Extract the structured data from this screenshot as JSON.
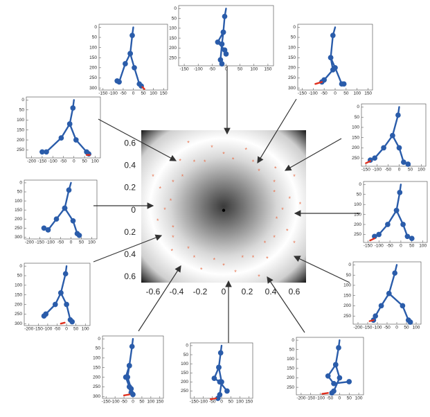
{
  "chart_data": [
    {
      "type": "scatter",
      "xlim": [
        -0.7,
        0.7
      ],
      "ylim": [
        -0.65,
        0.72
      ],
      "xticks": [
        -0.6,
        -0.4,
        -0.2,
        0,
        0.2,
        0.4,
        0.6
      ],
      "yticks": [
        {
          "value": -0.6,
          "label": "0.6"
        },
        {
          "value": -0.4,
          "label": "0.4"
        },
        {
          "value": -0.2,
          "label": "0.2"
        },
        0,
        0.2,
        0.4,
        0.6
      ],
      "series": [
        {
          "color": "#e8734f",
          "x": [
            0.5,
            0.56,
            0.43,
            0.43,
            0.44,
            0.3,
            0.25,
            0.19,
            0.08,
            0,
            -0.1,
            -0.16,
            -0.25,
            -0.37,
            -0.35,
            -0.43,
            -0.54,
            -0.45,
            -0.5,
            -0.56,
            -0.43,
            -0.43,
            -0.44,
            -0.3,
            -0.25,
            -0.19,
            -0.08,
            0,
            0.1,
            0.16,
            0.25,
            0.37,
            0.35,
            0.43,
            0.54,
            0.45,
            0.6,
            -0.6,
            0.6,
            -0.3,
            0.3,
            0.65
          ],
          "values": [
            0,
            0.1,
            0.16,
            0.25,
            0.37,
            0.35,
            0.43,
            0.54,
            0.45,
            0.5,
            0.56,
            0.43,
            0.43,
            0.44,
            0.3,
            0.25,
            0.19,
            0.08,
            0,
            -0.1,
            -0.16,
            -0.25,
            -0.37,
            -0.35,
            -0.43,
            -0.54,
            -0.45,
            -0.5,
            -0.56,
            -0.43,
            -0.43,
            -0.44,
            -0.3,
            -0.25,
            -0.19,
            -0.08,
            0.3,
            0.3,
            -0.3,
            0.6,
            -0.6,
            0.05
          ]
        },
        {
          "color": "#000000",
          "x": [
            0
          ],
          "values": [
            0
          ]
        }
      ]
    },
    {
      "type": "line",
      "xlim": [
        -170,
        170
      ],
      "ylim": [
        -15,
        310
      ],
      "y_inverted": true,
      "xticks": [
        -150,
        -100,
        -50,
        0,
        50,
        100,
        150
      ],
      "yticks": [
        0,
        50,
        100,
        150,
        200,
        250,
        300
      ],
      "series": [
        {
          "color": "#2a5caa",
          "x": [
            0,
            -5,
            -15,
            -40,
            -70,
            -80,
            null,
            -15,
            5,
            30,
            40
          ],
          "values": [
            0,
            40,
            130,
            180,
            270,
            265,
            null,
            130,
            200,
            280,
            290
          ]
        },
        {
          "color": "#e0301e",
          "x": [
            45,
            55
          ],
          "values": [
            295,
            305
          ]
        }
      ]
    },
    {
      "type": "line",
      "xlim": [
        -170,
        170
      ],
      "ylim": [
        -15,
        290
      ],
      "y_inverted": true,
      "xticks": [
        -150,
        -100,
        -50,
        0,
        50,
        100,
        150
      ],
      "yticks": [
        0,
        50,
        100,
        150,
        200,
        250
      ],
      "series": [
        {
          "color": "#2a5caa",
          "x": [
            0,
            -5,
            -10,
            -30,
            -5,
            0,
            null,
            -10,
            -15,
            -20,
            -15
          ],
          "values": [
            0,
            40,
            120,
            170,
            210,
            230,
            null,
            120,
            180,
            260,
            280
          ]
        }
      ]
    },
    {
      "type": "line",
      "xlim": [
        -170,
        170
      ],
      "ylim": [
        -15,
        310
      ],
      "y_inverted": true,
      "xticks": [
        -150,
        -100,
        -50,
        0,
        50,
        100,
        150
      ],
      "yticks": [
        0,
        50,
        100,
        150,
        200,
        250,
        300
      ],
      "series": [
        {
          "color": "#2a5caa",
          "x": [
            0,
            -10,
            -20,
            -10,
            -50,
            -60,
            null,
            -20,
            0,
            30,
            40
          ],
          "values": [
            0,
            40,
            150,
            210,
            260,
            270,
            null,
            150,
            200,
            280,
            280
          ]
        },
        {
          "color": "#e0301e",
          "x": [
            -90,
            -60
          ],
          "values": [
            280,
            270
          ]
        }
      ]
    },
    {
      "type": "line",
      "xlim": [
        -225,
        125
      ],
      "ylim": [
        -15,
        290
      ],
      "y_inverted": true,
      "xticks": [
        -200,
        -150,
        -100,
        -50,
        0,
        50,
        100
      ],
      "yticks": [
        0,
        50,
        100,
        150,
        200,
        250
      ],
      "series": [
        {
          "color": "#2a5caa",
          "x": [
            0,
            -5,
            -20,
            -60,
            -130,
            -150,
            null,
            -20,
            10,
            60,
            70
          ],
          "values": [
            0,
            40,
            120,
            190,
            260,
            260,
            null,
            120,
            200,
            260,
            270
          ]
        },
        {
          "color": "#e0301e",
          "x": [
            60,
            75
          ],
          "values": [
            275,
            275
          ]
        }
      ]
    },
    {
      "type": "line",
      "xlim": [
        -170,
        120
      ],
      "ylim": [
        -15,
        290
      ],
      "y_inverted": true,
      "xticks": [
        -150,
        -100,
        -50,
        0,
        50,
        100
      ],
      "yticks": [
        0,
        50,
        100,
        150,
        200,
        250
      ],
      "series": [
        {
          "color": "#2a5caa",
          "x": [
            0,
            -5,
            -30,
            -70,
            -110,
            -130,
            null,
            -30,
            0,
            20,
            40
          ],
          "values": [
            0,
            40,
            140,
            200,
            250,
            260,
            null,
            140,
            200,
            270,
            280
          ]
        },
        {
          "color": "#e0301e",
          "x": [
            -150,
            -130
          ],
          "values": [
            275,
            265
          ]
        }
      ]
    },
    {
      "type": "line",
      "xlim": [
        -225,
        125
      ],
      "ylim": [
        -15,
        310
      ],
      "y_inverted": true,
      "xticks": [
        -200,
        -150,
        -100,
        -50,
        0,
        50,
        100
      ],
      "yticks": [
        0,
        50,
        100,
        150,
        200,
        250,
        300
      ],
      "series": [
        {
          "color": "#2a5caa",
          "x": [
            0,
            -10,
            -30,
            -70,
            -110,
            -130,
            null,
            -30,
            10,
            30,
            40
          ],
          "values": [
            0,
            40,
            140,
            200,
            260,
            250,
            null,
            140,
            210,
            280,
            290
          ]
        }
      ]
    },
    {
      "type": "line",
      "xlim": [
        -170,
        120
      ],
      "ylim": [
        -15,
        290
      ],
      "y_inverted": true,
      "xticks": [
        -150,
        -100,
        -50,
        0,
        50,
        100
      ],
      "yticks": [
        0,
        50,
        100,
        150,
        200,
        250
      ],
      "series": [
        {
          "color": "#2a5caa",
          "x": [
            0,
            -5,
            -20,
            -60,
            -100,
            -120,
            null,
            -20,
            10,
            30,
            50
          ],
          "values": [
            0,
            40,
            130,
            200,
            250,
            260,
            null,
            130,
            200,
            260,
            270
          ]
        },
        {
          "color": "#e0301e",
          "x": [
            -140,
            -120
          ],
          "values": [
            280,
            270
          ]
        }
      ]
    },
    {
      "type": "line",
      "xlim": [
        -225,
        125
      ],
      "ylim": [
        -15,
        310
      ],
      "y_inverted": true,
      "xticks": [
        -200,
        -150,
        -100,
        -50,
        0,
        50,
        100
      ],
      "yticks": [
        0,
        50,
        100,
        150,
        200,
        250,
        300
      ],
      "series": [
        {
          "color": "#2a5caa",
          "x": [
            0,
            -5,
            -30,
            -60,
            -110,
            -120,
            null,
            -30,
            0,
            20,
            30
          ],
          "values": [
            0,
            40,
            140,
            200,
            250,
            260,
            null,
            140,
            200,
            280,
            290
          ]
        },
        {
          "color": "#e0301e",
          "x": [
            -30,
            -10
          ],
          "values": [
            300,
            295
          ]
        }
      ]
    },
    {
      "type": "line",
      "xlim": [
        -225,
        125
      ],
      "ylim": [
        -15,
        290
      ],
      "y_inverted": true,
      "xticks": [
        -200,
        -150,
        -100,
        -50,
        0,
        50,
        100
      ],
      "yticks": [
        0,
        50,
        100,
        150,
        200,
        250
      ],
      "series": [
        {
          "color": "#2a5caa",
          "x": [
            0,
            -10,
            -40,
            -80,
            -110,
            -120,
            null,
            -40,
            30,
            60,
            70
          ],
          "values": [
            0,
            40,
            140,
            200,
            250,
            270,
            null,
            140,
            200,
            270,
            280
          ]
        },
        {
          "color": "#e0301e",
          "x": [
            -140,
            -120
          ],
          "values": [
            275,
            270
          ]
        }
      ]
    },
    {
      "type": "line",
      "xlim": [
        -170,
        170
      ],
      "ylim": [
        -15,
        310
      ],
      "y_inverted": true,
      "xticks": [
        -150,
        -100,
        -50,
        0,
        50,
        100,
        150
      ],
      "yticks": [
        0,
        50,
        100,
        150,
        200,
        250,
        300
      ],
      "series": [
        {
          "color": "#2a5caa",
          "x": [
            0,
            -5,
            -20,
            -40,
            -20,
            -10,
            null,
            -20,
            -30,
            -10,
            0
          ],
          "values": [
            0,
            40,
            140,
            200,
            250,
            280,
            null,
            140,
            200,
            260,
            290
          ]
        },
        {
          "color": "#e0301e",
          "x": [
            -50,
            -20
          ],
          "values": [
            295,
            290
          ]
        }
      ]
    },
    {
      "type": "line",
      "xlim": [
        -170,
        170
      ],
      "ylim": [
        -15,
        290
      ],
      "y_inverted": true,
      "xticks": [
        -150,
        -100,
        -50,
        0,
        50,
        100,
        150
      ],
      "yticks": [
        0,
        50,
        100,
        150,
        200,
        250
      ],
      "series": [
        {
          "color": "#2a5caa",
          "x": [
            0,
            -5,
            -15,
            -40,
            -10,
            30,
            null,
            -15,
            0,
            -10,
            -20
          ],
          "values": [
            0,
            40,
            120,
            180,
            200,
            250,
            null,
            120,
            200,
            270,
            290
          ]
        },
        {
          "color": "#e0301e",
          "x": [
            -60,
            -30
          ],
          "values": [
            295,
            290
          ]
        }
      ]
    },
    {
      "type": "line",
      "xlim": [
        -225,
        125
      ],
      "ylim": [
        -15,
        290
      ],
      "y_inverted": true,
      "xticks": [
        -200,
        -150,
        -100,
        -50,
        0,
        50,
        100
      ],
      "yticks": [
        0,
        50,
        100,
        150,
        200,
        250
      ],
      "series": [
        {
          "color": "#2a5caa",
          "x": [
            0,
            -5,
            -20,
            -60,
            -30,
            50,
            null,
            -20,
            0,
            -30,
            -40
          ],
          "values": [
            0,
            40,
            130,
            190,
            230,
            220,
            null,
            130,
            200,
            270,
            280
          ]
        },
        {
          "color": "#e0301e",
          "x": [
            -90,
            -60
          ],
          "values": [
            285,
            280
          ]
        }
      ]
    }
  ]
}
